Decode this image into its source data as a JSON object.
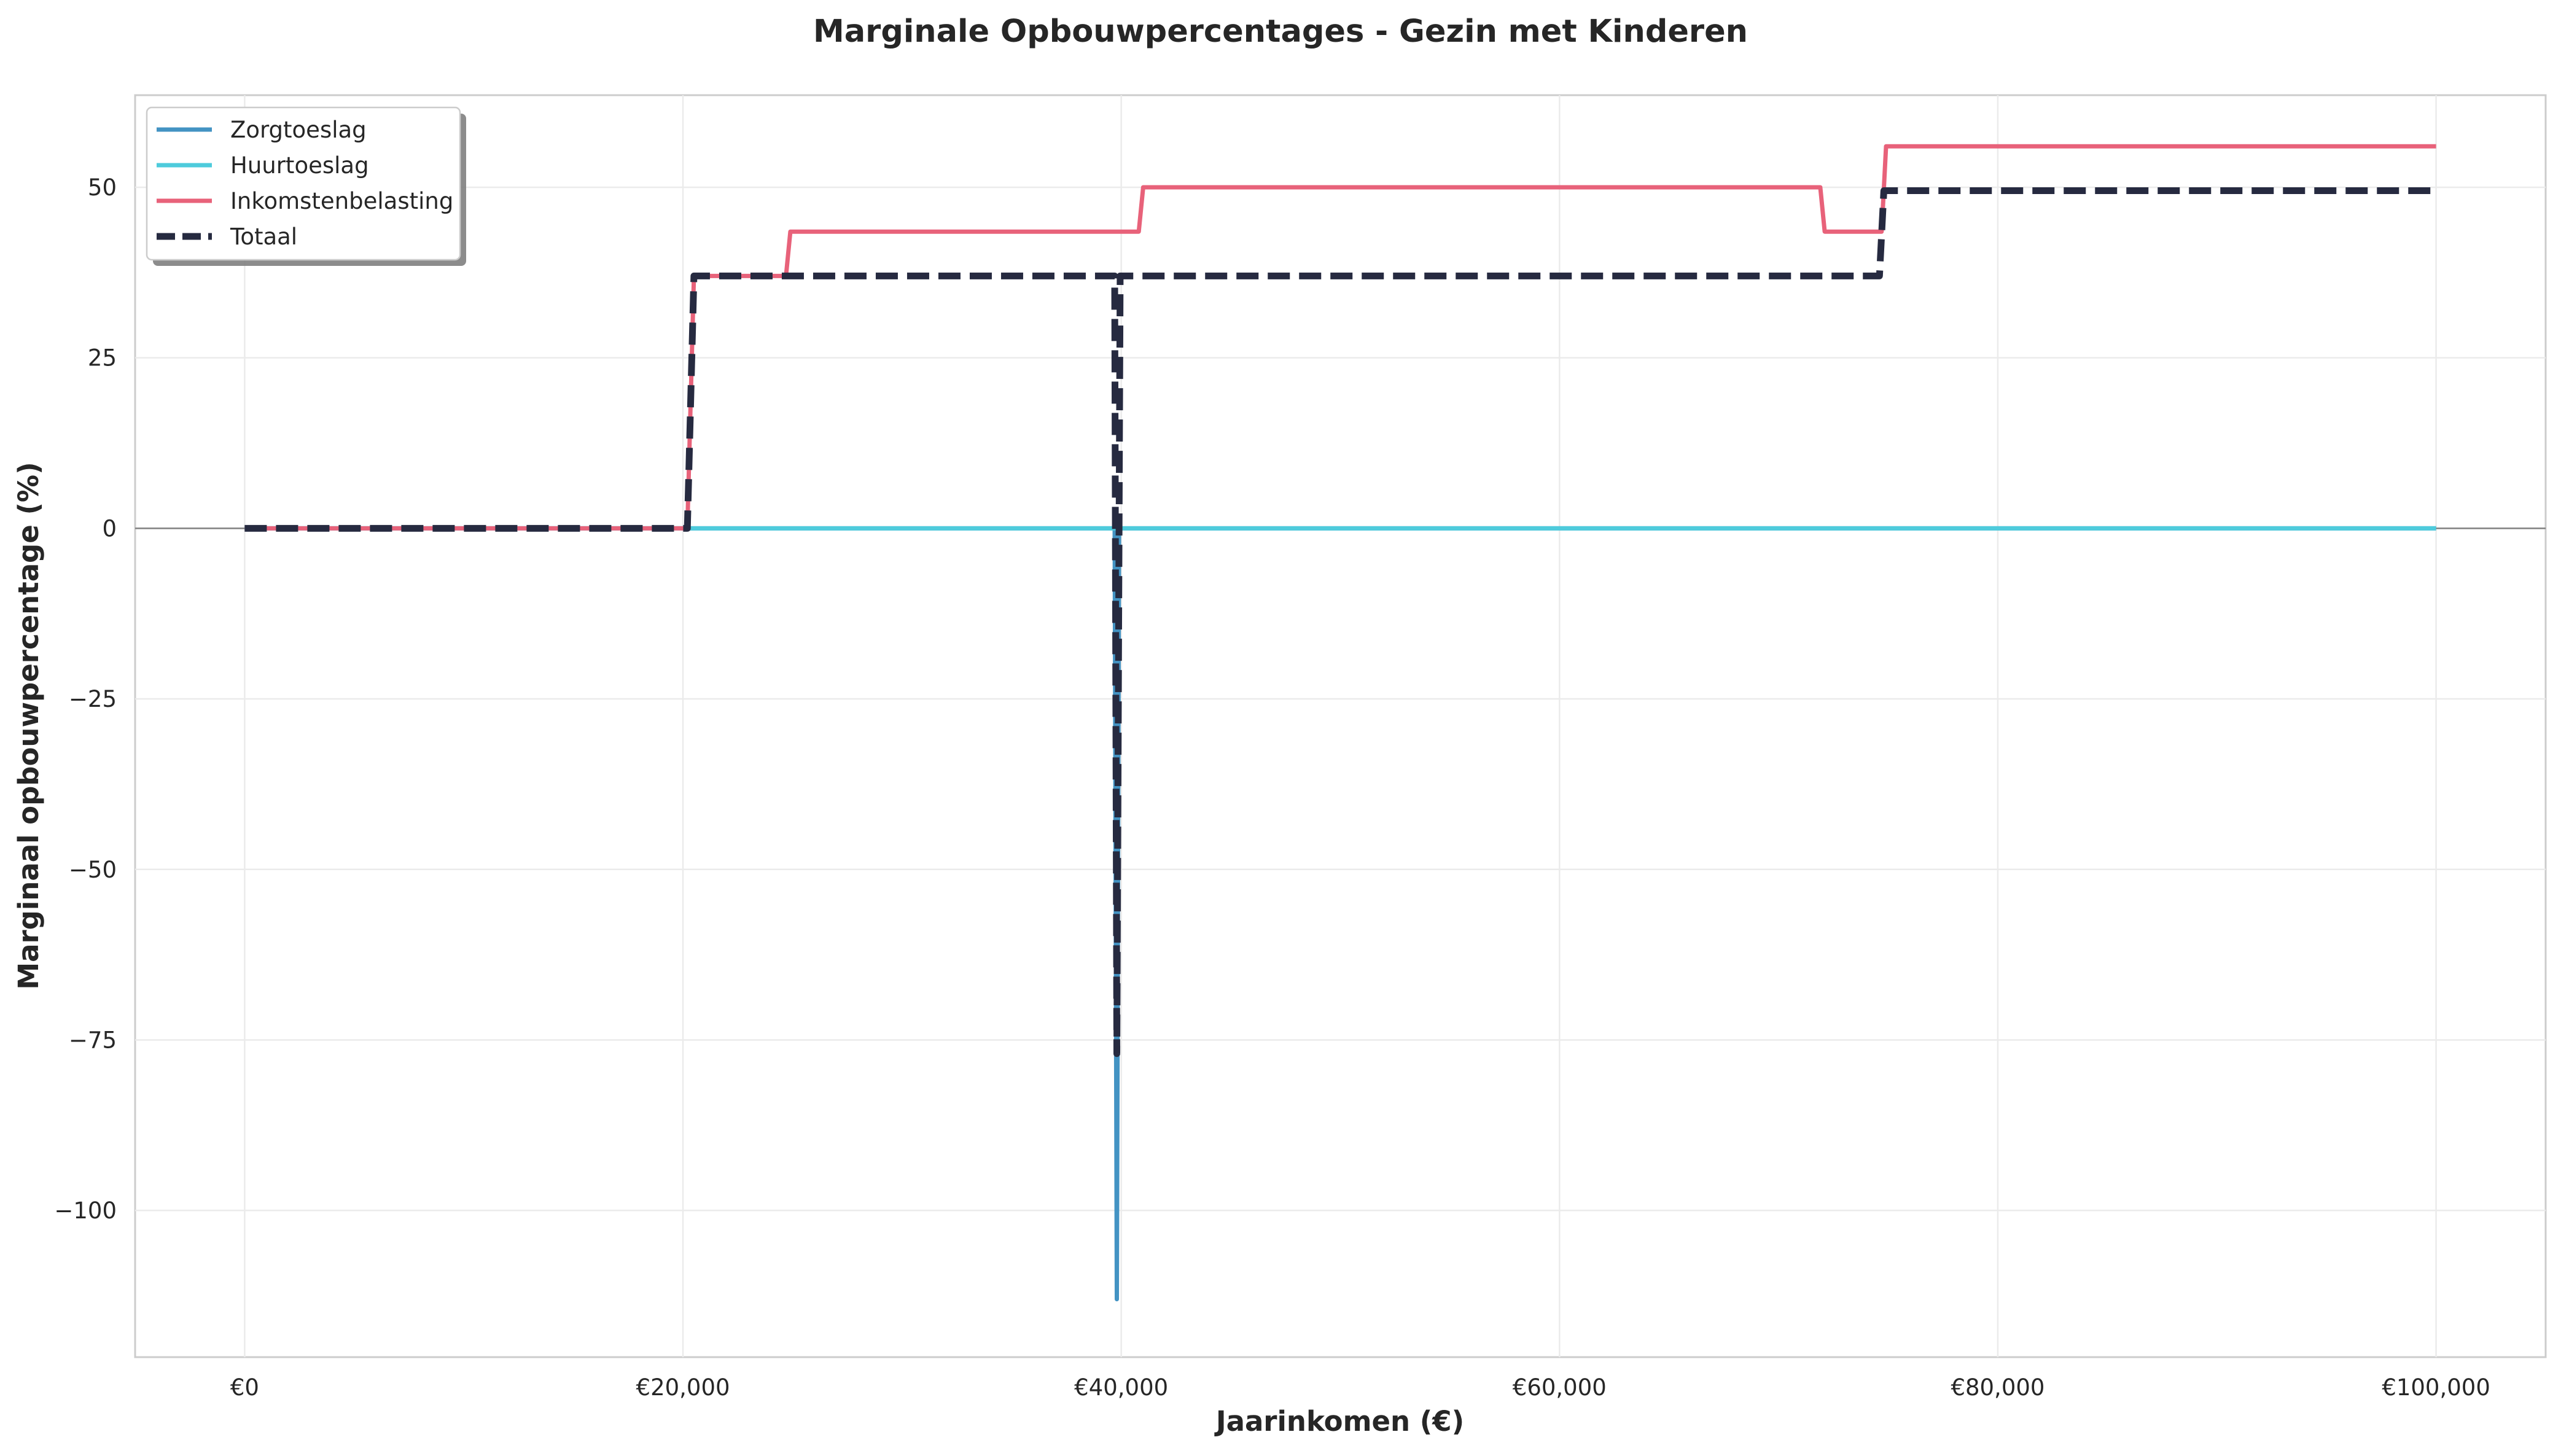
{
  "chart_data": {
    "type": "line",
    "title": "Marginale Opbouwpercentages - Gezin met Kinderen",
    "xlabel": "Jaarinkomen (€)",
    "ylabel": "Marginaal opbouwpercentage (%)",
    "xlim": [
      -5000,
      105000
    ],
    "ylim": [
      -121.5,
      63.5
    ],
    "xticks": [
      0,
      20000,
      40000,
      60000,
      80000,
      100000
    ],
    "xtick_labels": [
      "€0",
      "€20,000",
      "€40,000",
      "€60,000",
      "€80,000",
      "€100,000"
    ],
    "yticks": [
      -100,
      -75,
      -50,
      -25,
      0,
      25,
      50
    ],
    "ytick_labels": [
      "−100",
      "−75",
      "−50",
      "−25",
      "0",
      "25",
      "50"
    ],
    "grid": true,
    "zero_line": true,
    "legend_position": "upper left",
    "series": [
      {
        "name": "Zorgtoeslag",
        "color": "#4393c3",
        "style": "solid",
        "points": [
          [
            0,
            0
          ],
          [
            39700,
            0
          ],
          [
            39800,
            -113
          ],
          [
            39900,
            0
          ],
          [
            100000,
            0
          ]
        ]
      },
      {
        "name": "Huurtoeslag",
        "color": "#4ecbdc",
        "style": "solid",
        "points": [
          [
            0,
            0
          ],
          [
            100000,
            0
          ]
        ]
      },
      {
        "name": "Inkomstenbelasting",
        "color": "#e8627a",
        "style": "solid",
        "points": [
          [
            0,
            0
          ],
          [
            20200,
            0
          ],
          [
            20500,
            37
          ],
          [
            24700,
            37
          ],
          [
            24900,
            43.5
          ],
          [
            40800,
            43.5
          ],
          [
            41000,
            50
          ],
          [
            71900,
            50
          ],
          [
            72100,
            43.5
          ],
          [
            74700,
            43.5
          ],
          [
            74900,
            56
          ],
          [
            100000,
            56
          ]
        ]
      },
      {
        "name": "Totaal",
        "color": "#262a40",
        "style": "dashed",
        "points": [
          [
            0,
            0
          ],
          [
            20200,
            0
          ],
          [
            20500,
            37
          ],
          [
            39700,
            37
          ],
          [
            39800,
            -77
          ],
          [
            39950,
            37
          ],
          [
            74600,
            37
          ],
          [
            74800,
            49.5
          ],
          [
            100000,
            49.5
          ]
        ]
      }
    ]
  }
}
